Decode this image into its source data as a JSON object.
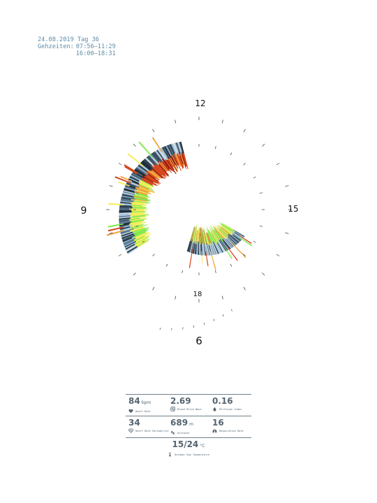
{
  "header": {
    "date_line": "24.08.2019 Tag 36",
    "times_label": "Gehzeiten:",
    "times": [
      "07:56–11:29",
      "16:00–18:31"
    ]
  },
  "chart_data": {
    "type": "radial-bar",
    "hour_labels": [
      {
        "hour": 12,
        "label": "12"
      },
      {
        "hour": 15,
        "label": "15"
      },
      {
        "hour": 18,
        "label": "18"
      },
      {
        "hour": 9,
        "label": "9"
      },
      {
        "hour": 6,
        "label": "6"
      }
    ],
    "walking_intervals": [
      {
        "start": "07:56",
        "end": "11:29"
      },
      {
        "start": "16:00",
        "end": "18:31"
      }
    ],
    "colors": {
      "very_low": "#1d2c38",
      "low": "#8fb4cf",
      "mid_low": "#c7d9e6",
      "mid": "#f4ec5a",
      "green": "#7dea4a",
      "orange": "#f0a23a",
      "red": "#d64419",
      "dark_red": "#8e1810"
    }
  },
  "stats": {
    "heart_rate": {
      "value": "84",
      "unit": "bpm",
      "label": "Heart Rate",
      "icon": "heart-icon"
    },
    "blood_pulse_wave": {
      "value": "2.69",
      "unit": "",
      "label": "Blood Pulse Wave",
      "icon": "pulse-wave-icon"
    },
    "perfusion_index": {
      "value": "0.16",
      "unit": "",
      "label": "Perfusion Index",
      "icon": "drop-icon"
    },
    "heart_rate_variability": {
      "value": "34",
      "unit": "",
      "label": "Heart Rate Variability",
      "icon": "heart-wave-icon"
    },
    "distance": {
      "value": "689",
      "unit": "m",
      "label": "Distance",
      "icon": "footsteps-icon"
    },
    "respiration_rate": {
      "value": "16",
      "unit": "",
      "label": "Respiration Rate",
      "icon": "lungs-icon"
    },
    "temperature": {
      "value": "15/24",
      "unit": "°C",
      "label": "Outdoor Day Temperature",
      "icon": "thermometer-icon"
    }
  }
}
